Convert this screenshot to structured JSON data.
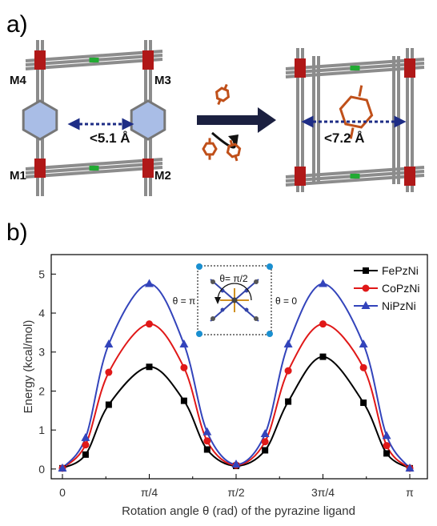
{
  "panel_a": {
    "label": "a)",
    "metal_labels": [
      "M4",
      "M3",
      "M1",
      "M2"
    ],
    "left_distance": "<5.1 Å",
    "right_distance": "<7.2 Å",
    "colors": {
      "metal": "#b01818",
      "linker": "#8c8c8c",
      "ring_fill": "#a9bde6",
      "guest": "#c0501a",
      "arrow": "#1e2d86",
      "nodeGreen": "#22aa33"
    }
  },
  "panel_b": {
    "label": "b)"
  },
  "chart_data": {
    "type": "line",
    "xlabel": "Rotation angle θ (rad) of the pyrazine ligand",
    "ylabel": "Energy (kcal/mol)",
    "xlim": [
      0,
      3.14159
    ],
    "ylim": [
      -0.25,
      5.5
    ],
    "x_ticks": [
      {
        "value": 0,
        "label": "0"
      },
      {
        "value": 0.7854,
        "label": "π/4"
      },
      {
        "value": 1.5708,
        "label": "π/2"
      },
      {
        "value": 2.3562,
        "label": "3π/4"
      },
      {
        "value": 3.1416,
        "label": "π"
      }
    ],
    "y_ticks": [
      0,
      1,
      2,
      3,
      4,
      5
    ],
    "legend_position": "top-right",
    "inset": {
      "label_top": "θ= π/2",
      "label_left": "θ = π",
      "label_right": "θ = 0"
    },
    "x": [
      0,
      0.1309,
      0.2618,
      0.3927,
      0.5236,
      0.6545,
      0.7854,
      0.9163,
      1.0472,
      1.1781,
      1.309,
      1.4399,
      1.5708,
      1.7017,
      1.8326,
      1.9635,
      2.0944,
      2.2253,
      2.3562,
      2.4871,
      2.618,
      2.7489,
      2.8798,
      3.0107,
      3.1416
    ],
    "series": [
      {
        "name": "FePzNi",
        "color": "#000000",
        "marker": "square",
        "points": [
          [
            0,
            0.02
          ],
          [
            0.2094,
            0.37
          ],
          [
            0.4189,
            1.65
          ],
          [
            0.7854,
            2.62
          ],
          [
            1.0995,
            1.75
          ],
          [
            1.309,
            0.5
          ],
          [
            1.5708,
            0.08
          ],
          [
            1.8326,
            0.48
          ],
          [
            2.042,
            1.73
          ],
          [
            2.3562,
            2.88
          ],
          [
            2.7227,
            1.7
          ],
          [
            2.9322,
            0.4
          ],
          [
            3.1416,
            0.02
          ]
        ]
      },
      {
        "name": "CoPzNi",
        "color": "#e01818",
        "marker": "circle",
        "points": [
          [
            0,
            0.02
          ],
          [
            0.2094,
            0.62
          ],
          [
            0.4189,
            2.48
          ],
          [
            0.7854,
            3.72
          ],
          [
            1.0995,
            2.6
          ],
          [
            1.309,
            0.72
          ],
          [
            1.5708,
            0.1
          ],
          [
            1.8326,
            0.7
          ],
          [
            2.042,
            2.52
          ],
          [
            2.3562,
            3.72
          ],
          [
            2.7227,
            2.6
          ],
          [
            2.9322,
            0.6
          ],
          [
            3.1416,
            0.02
          ]
        ]
      },
      {
        "name": "NiPzNi",
        "color": "#3344bb",
        "marker": "triangle",
        "points": [
          [
            0,
            0.02
          ],
          [
            0.2094,
            0.8
          ],
          [
            0.4189,
            3.2
          ],
          [
            0.7854,
            4.75
          ],
          [
            1.0995,
            3.2
          ],
          [
            1.309,
            0.95
          ],
          [
            1.5708,
            0.12
          ],
          [
            1.8326,
            0.9
          ],
          [
            2.042,
            3.2
          ],
          [
            2.3562,
            4.75
          ],
          [
            2.7227,
            3.2
          ],
          [
            2.9322,
            0.85
          ],
          [
            3.1416,
            0.02
          ]
        ]
      }
    ]
  }
}
